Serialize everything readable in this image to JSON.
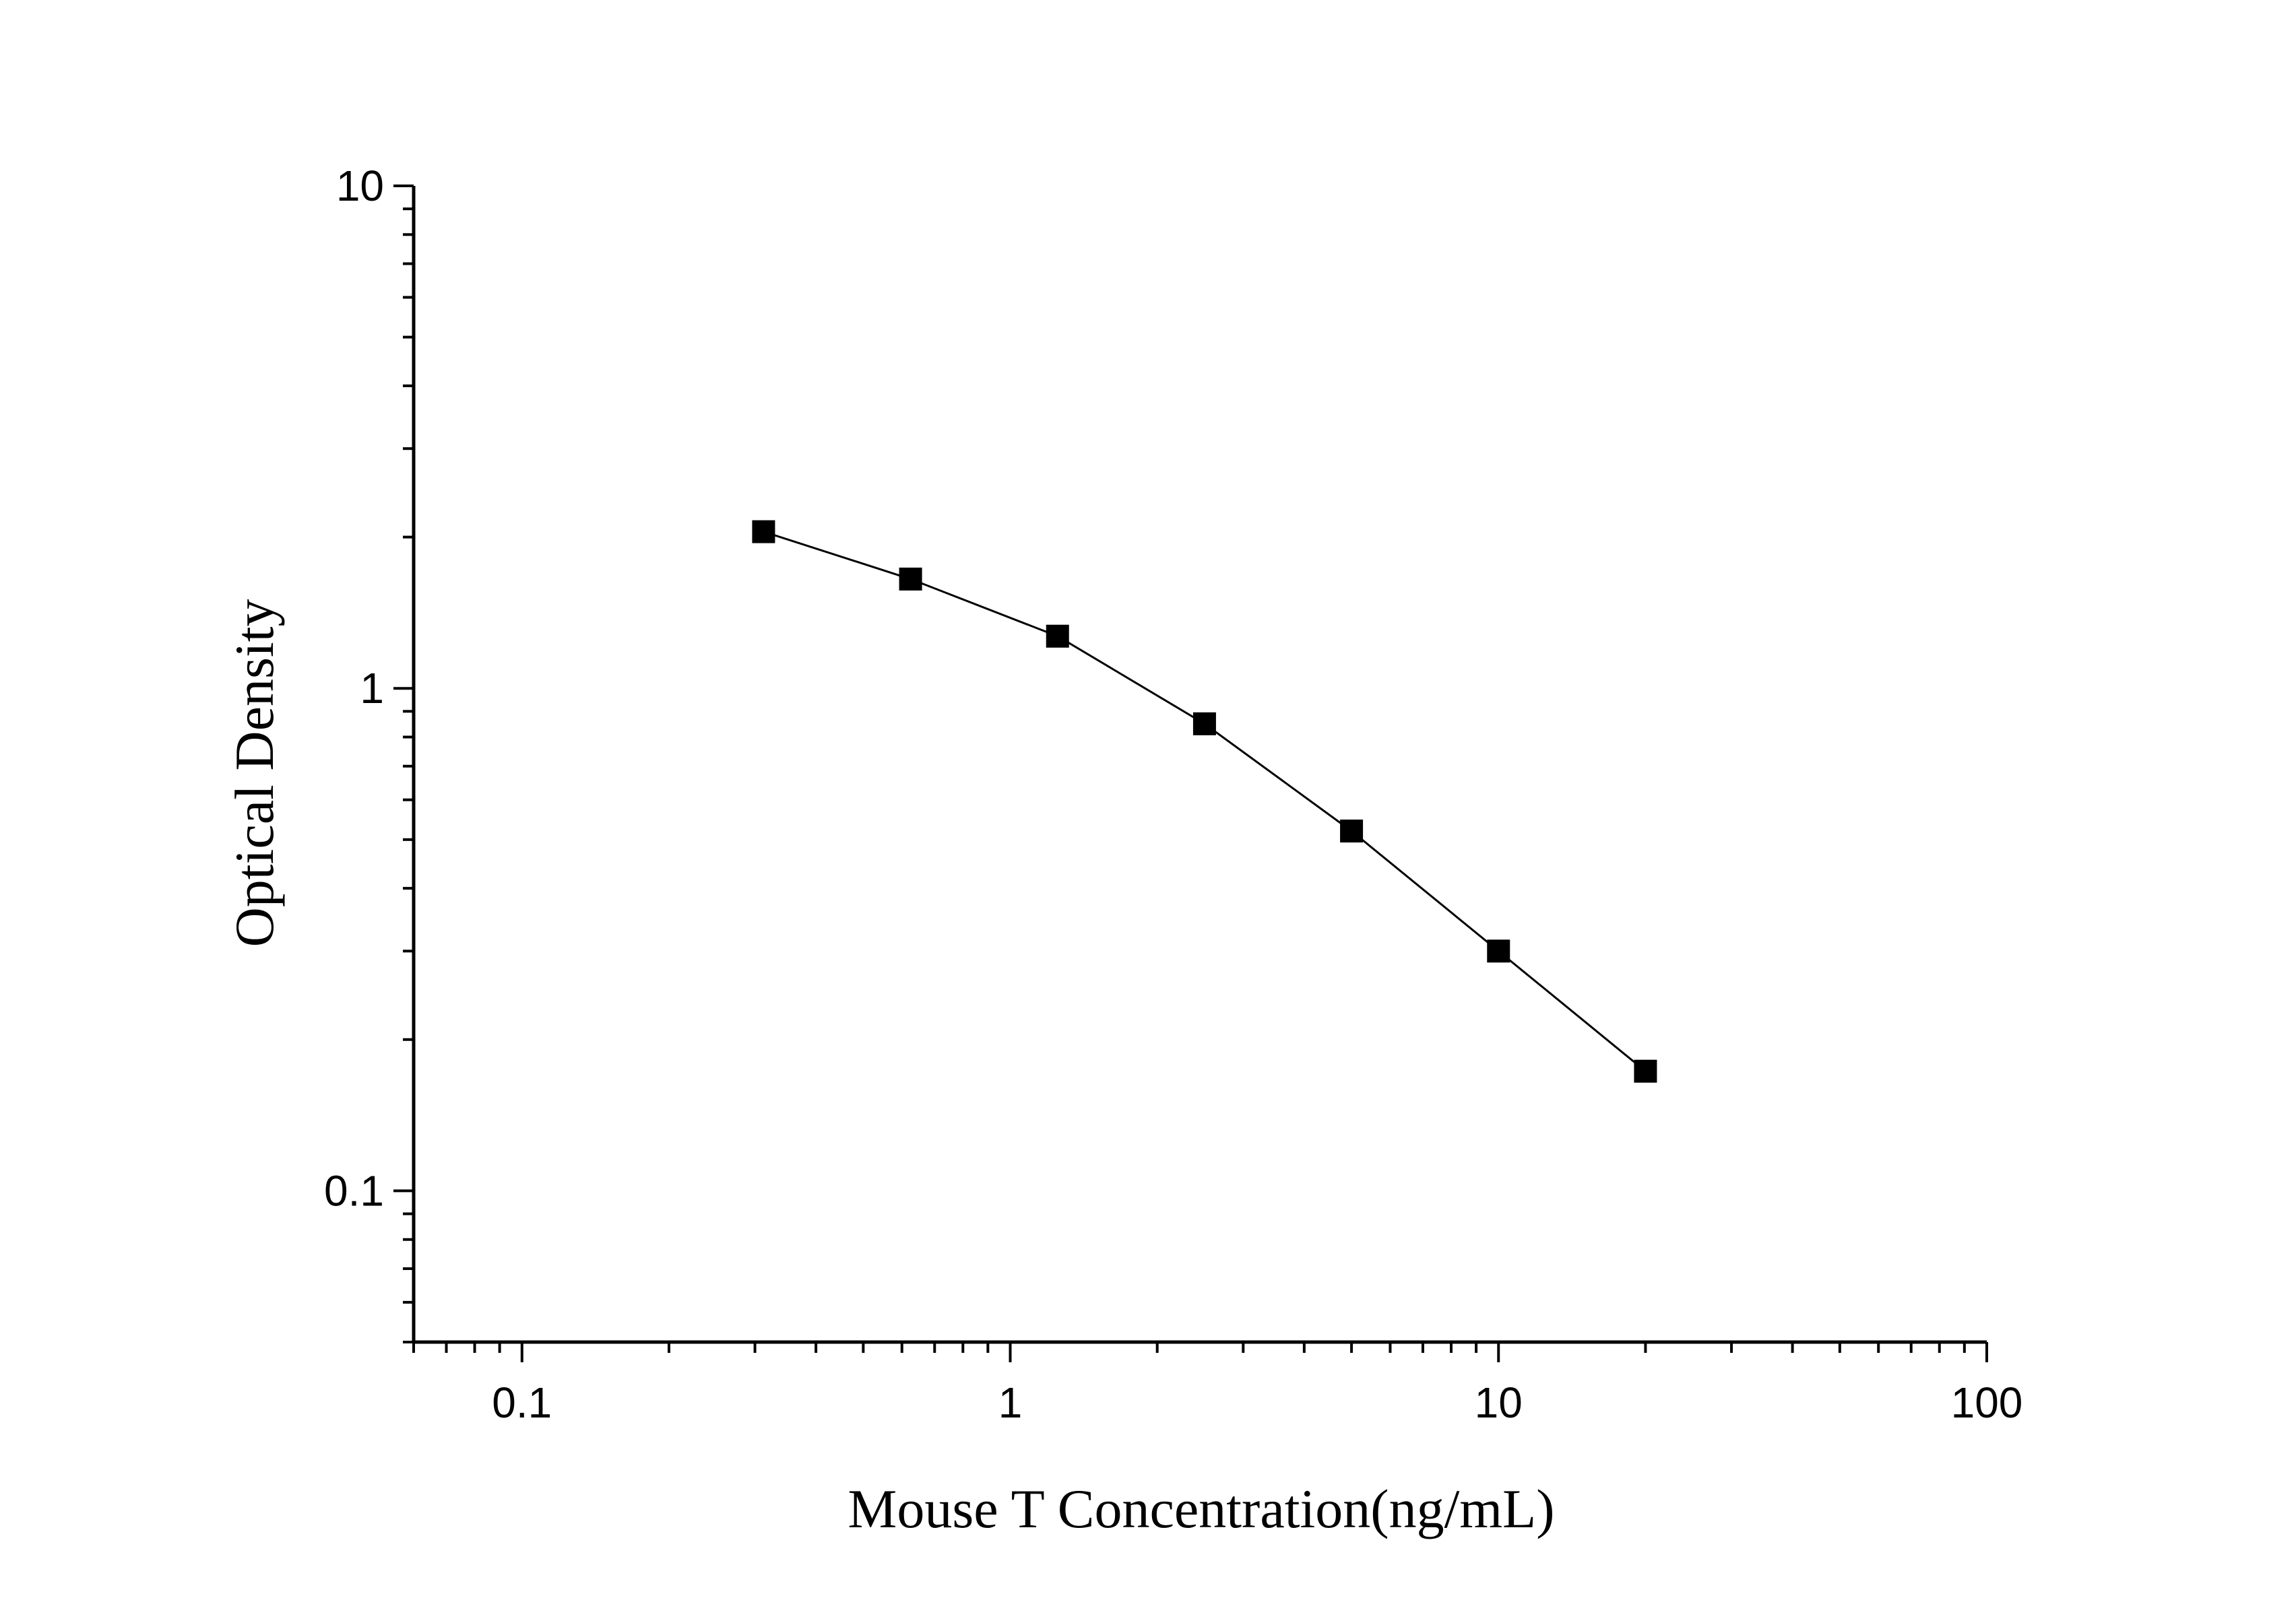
{
  "chart_data": {
    "type": "line",
    "title": "",
    "xlabel": "Mouse T Concentration(ng/mL)",
    "ylabel": "Optical Density",
    "x_scale": "log",
    "y_scale": "log",
    "xlim": [
      0.06,
      100
    ],
    "ylim": [
      0.05,
      10
    ],
    "x_tick_labels": [
      {
        "value": 0.1,
        "label": "0.1"
      },
      {
        "value": 1,
        "label": "1"
      },
      {
        "value": 10,
        "label": "10"
      },
      {
        "value": 100,
        "label": "100"
      }
    ],
    "y_tick_labels": [
      {
        "value": 0.1,
        "label": "0.1"
      },
      {
        "value": 1,
        "label": "1"
      },
      {
        "value": 10,
        "label": "10"
      }
    ],
    "grid": false,
    "legend": "none",
    "marker": "square",
    "color": "#000000",
    "series": [
      {
        "x": [
          0.3125,
          0.625,
          1.25,
          2.5,
          5,
          10,
          20
        ],
        "y": [
          2.05,
          1.65,
          1.27,
          0.85,
          0.52,
          0.3,
          0.173
        ]
      }
    ]
  }
}
